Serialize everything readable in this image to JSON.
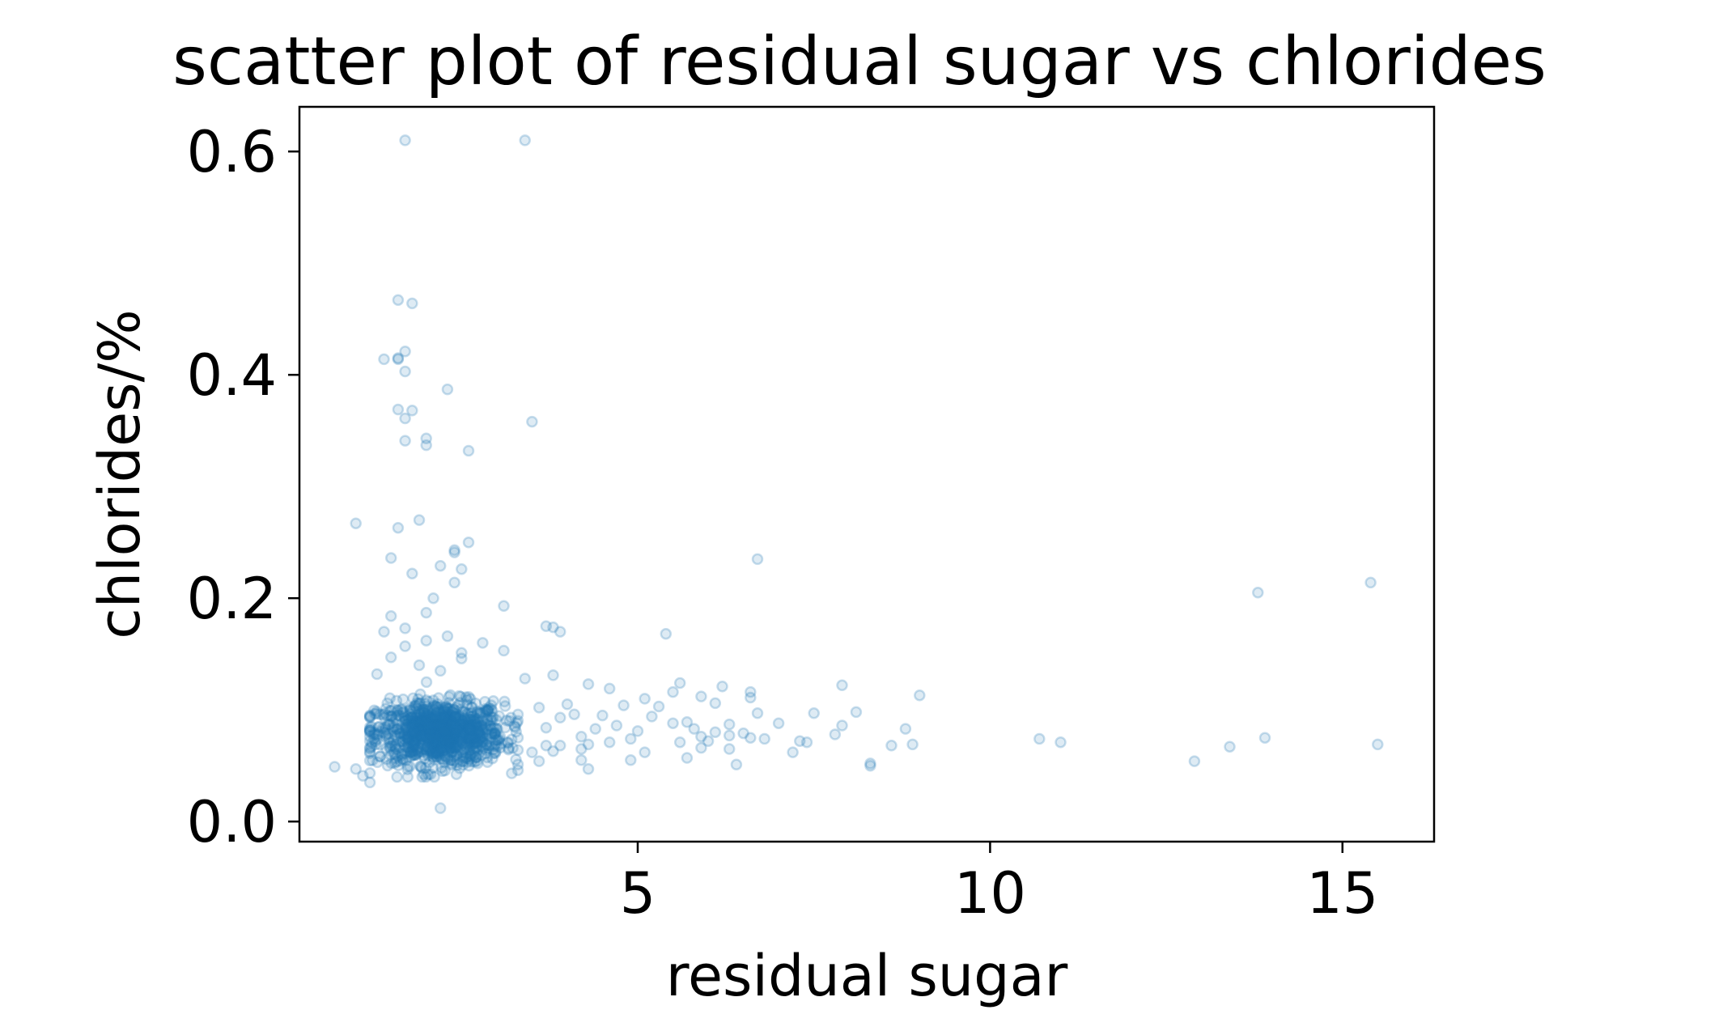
{
  "chart_data": {
    "type": "scatter",
    "title": "scatter plot of residual sugar vs chlorides",
    "xlabel": "residual sugar",
    "ylabel": "chlorides/%",
    "xlim": [
      0.2,
      16.3
    ],
    "ylim": [
      -0.018,
      0.64
    ],
    "xticks": [
      5,
      10,
      15
    ],
    "xtick_labels": [
      "5",
      "10",
      "15"
    ],
    "yticks": [
      0.0,
      0.2,
      0.4,
      0.6
    ],
    "ytick_labels": [
      "0.0",
      "0.2",
      "0.4",
      "0.6"
    ],
    "grid": false,
    "legend": "none",
    "marker_color": "#1f77b4",
    "marker_alpha": 0.15,
    "series": [
      {
        "points": [
          [
            1.7,
            0.61
          ],
          [
            3.4,
            0.61
          ],
          [
            1.6,
            0.467
          ],
          [
            1.8,
            0.464
          ],
          [
            1.7,
            0.421
          ],
          [
            1.6,
            0.415
          ],
          [
            1.6,
            0.414
          ],
          [
            1.4,
            0.414
          ],
          [
            1.7,
            0.403
          ],
          [
            2.3,
            0.387
          ],
          [
            1.6,
            0.369
          ],
          [
            1.8,
            0.368
          ],
          [
            1.7,
            0.361
          ],
          [
            3.5,
            0.358
          ],
          [
            2.0,
            0.343
          ],
          [
            1.7,
            0.341
          ],
          [
            2.0,
            0.337
          ],
          [
            2.6,
            0.332
          ],
          [
            1.9,
            0.27
          ],
          [
            1.0,
            0.267
          ],
          [
            1.6,
            0.263
          ],
          [
            2.6,
            0.25
          ],
          [
            2.4,
            0.243
          ],
          [
            2.4,
            0.241
          ],
          [
            1.5,
            0.236
          ],
          [
            6.7,
            0.235
          ],
          [
            2.2,
            0.229
          ],
          [
            2.5,
            0.226
          ],
          [
            1.8,
            0.222
          ],
          [
            2.4,
            0.214
          ],
          [
            15.4,
            0.214
          ],
          [
            13.8,
            0.205
          ],
          [
            2.1,
            0.2
          ],
          [
            3.1,
            0.193
          ],
          [
            2.0,
            0.187
          ],
          [
            1.5,
            0.184
          ],
          [
            3.7,
            0.175
          ],
          [
            3.8,
            0.174
          ],
          [
            1.7,
            0.173
          ],
          [
            3.9,
            0.17
          ],
          [
            1.4,
            0.17
          ],
          [
            5.4,
            0.168
          ],
          [
            2.3,
            0.166
          ],
          [
            2.0,
            0.162
          ],
          [
            2.8,
            0.16
          ],
          [
            1.7,
            0.157
          ],
          [
            2.5,
            0.151
          ],
          [
            3.1,
            0.153
          ],
          [
            2.5,
            0.146
          ],
          [
            1.5,
            0.147
          ],
          [
            1.9,
            0.14
          ],
          [
            2.2,
            0.135
          ],
          [
            1.3,
            0.132
          ],
          [
            3.4,
            0.128
          ],
          [
            3.8,
            0.131
          ],
          [
            5.6,
            0.124
          ],
          [
            4.3,
            0.123
          ],
          [
            6.2,
            0.121
          ],
          [
            7.9,
            0.122
          ],
          [
            4.6,
            0.119
          ],
          [
            5.5,
            0.116
          ],
          [
            6.6,
            0.116
          ],
          [
            9.0,
            0.113
          ],
          [
            5.1,
            0.11
          ],
          [
            5.9,
            0.112
          ],
          [
            6.6,
            0.111
          ],
          [
            4.8,
            0.104
          ],
          [
            5.3,
            0.103
          ],
          [
            6.1,
            0.106
          ],
          [
            4.0,
            0.105
          ],
          [
            3.6,
            0.102
          ],
          [
            8.1,
            0.098
          ],
          [
            6.7,
            0.097
          ],
          [
            7.5,
            0.097
          ],
          [
            4.1,
            0.096
          ],
          [
            4.5,
            0.095
          ],
          [
            5.2,
            0.094
          ],
          [
            3.9,
            0.093
          ],
          [
            5.7,
            0.089
          ],
          [
            5.5,
            0.088
          ],
          [
            6.3,
            0.087
          ],
          [
            7.0,
            0.088
          ],
          [
            4.7,
            0.086
          ],
          [
            7.9,
            0.086
          ],
          [
            8.8,
            0.083
          ],
          [
            5.8,
            0.083
          ],
          [
            6.1,
            0.08
          ],
          [
            6.5,
            0.079
          ],
          [
            5.0,
            0.081
          ],
          [
            3.7,
            0.084
          ],
          [
            4.4,
            0.083
          ],
          [
            7.8,
            0.078
          ],
          [
            6.3,
            0.077
          ],
          [
            6.6,
            0.075
          ],
          [
            5.9,
            0.076
          ],
          [
            6.8,
            0.074
          ],
          [
            4.2,
            0.076
          ],
          [
            4.9,
            0.074
          ],
          [
            10.7,
            0.074
          ],
          [
            11.0,
            0.071
          ],
          [
            13.9,
            0.075
          ],
          [
            7.3,
            0.072
          ],
          [
            7.4,
            0.071
          ],
          [
            6.0,
            0.072
          ],
          [
            5.6,
            0.071
          ],
          [
            4.6,
            0.071
          ],
          [
            4.3,
            0.069
          ],
          [
            5.9,
            0.066
          ],
          [
            6.3,
            0.065
          ],
          [
            8.9,
            0.069
          ],
          [
            8.6,
            0.068
          ],
          [
            3.9,
            0.068
          ],
          [
            3.7,
            0.068
          ],
          [
            13.4,
            0.067
          ],
          [
            15.5,
            0.069
          ],
          [
            4.2,
            0.065
          ],
          [
            3.8,
            0.063
          ],
          [
            3.5,
            0.062
          ],
          [
            5.1,
            0.062
          ],
          [
            7.2,
            0.062
          ],
          [
            5.7,
            0.057
          ],
          [
            4.9,
            0.055
          ],
          [
            4.2,
            0.055
          ],
          [
            3.6,
            0.054
          ],
          [
            12.9,
            0.054
          ],
          [
            6.4,
            0.051
          ],
          [
            8.3,
            0.05
          ],
          [
            8.3,
            0.052
          ],
          [
            4.3,
            0.047
          ],
          [
            3.3,
            0.046
          ],
          [
            2.2,
            0.012
          ],
          [
            0.7,
            0.049
          ],
          [
            1.1,
            0.041
          ],
          [
            1.2,
            0.035
          ],
          [
            1.0,
            0.047
          ]
        ],
        "dense_cluster": {
          "x_center": 2.2,
          "x_spread": 0.45,
          "y_center": 0.079,
          "y_spread": 0.014,
          "count": 1100
        }
      }
    ]
  }
}
